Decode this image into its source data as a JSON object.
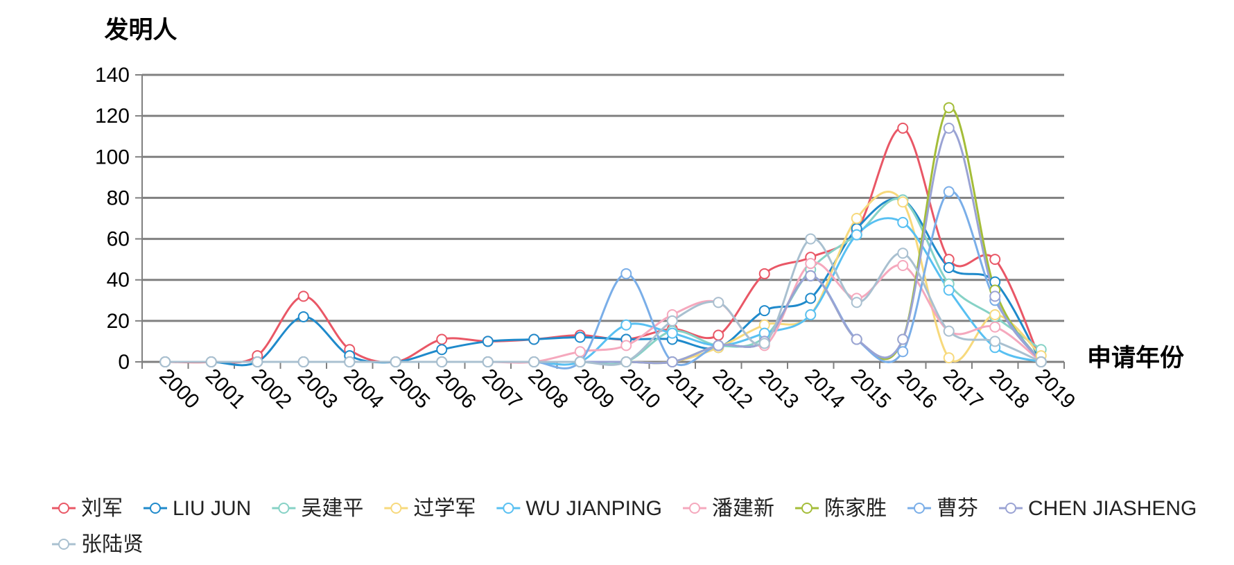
{
  "chart_data": {
    "type": "line",
    "ylabel": "发明人",
    "xlabel": "申请年份",
    "ylim": [
      0,
      140
    ],
    "yticks": [
      0,
      20,
      40,
      60,
      80,
      100,
      120,
      140
    ],
    "grid": true,
    "legend_position": "bottom",
    "categories": [
      "2000",
      "2001",
      "2002",
      "2003",
      "2004",
      "2005",
      "2006",
      "2007",
      "2008",
      "2009",
      "2010",
      "2011",
      "2012",
      "2013",
      "2014",
      "2015",
      "2016",
      "2017",
      "2018",
      "2019"
    ],
    "series": [
      {
        "name": "刘军",
        "color": "#e95766",
        "values": [
          0,
          0,
          3,
          32,
          6,
          0,
          11,
          10,
          11,
          13,
          11,
          16,
          13,
          43,
          51,
          64,
          114,
          50,
          50,
          0
        ]
      },
      {
        "name": "LIU JUN",
        "color": "#1f8acb",
        "values": [
          0,
          0,
          0,
          22,
          3,
          0,
          6,
          10,
          11,
          12,
          11,
          11,
          7,
          25,
          31,
          65,
          79,
          46,
          39,
          0
        ]
      },
      {
        "name": "吴建平",
        "color": "#86d2c6",
        "values": [
          0,
          0,
          0,
          0,
          0,
          0,
          0,
          0,
          0,
          0,
          0,
          15,
          8,
          12,
          45,
          62,
          79,
          38,
          22,
          6
        ]
      },
      {
        "name": "过学军",
        "color": "#f7d97c",
        "values": [
          0,
          0,
          0,
          0,
          0,
          0,
          0,
          0,
          0,
          0,
          0,
          0,
          7,
          18,
          23,
          70,
          78,
          2,
          23,
          3
        ]
      },
      {
        "name": "WU JIANPING",
        "color": "#58c0f2",
        "values": [
          0,
          0,
          0,
          0,
          0,
          0,
          0,
          0,
          0,
          0,
          18,
          14,
          8,
          14,
          23,
          62,
          68,
          35,
          7,
          0
        ]
      },
      {
        "name": "潘建新",
        "color": "#f5a8bd",
        "values": [
          0,
          0,
          0,
          0,
          0,
          0,
          0,
          0,
          0,
          5,
          8,
          23,
          29,
          8,
          48,
          31,
          47,
          15,
          17,
          0
        ]
      },
      {
        "name": "陈家胜",
        "color": "#a4bd39",
        "values": [
          0,
          0,
          0,
          0,
          0,
          0,
          0,
          0,
          0,
          0,
          0,
          0,
          8,
          10,
          42,
          11,
          11,
          124,
          35,
          0
        ]
      },
      {
        "name": "曹芬",
        "color": "#7aaee8",
        "values": [
          0,
          0,
          0,
          0,
          0,
          0,
          0,
          0,
          0,
          0,
          43,
          0,
          8,
          10,
          42,
          11,
          5,
          83,
          30,
          0
        ]
      },
      {
        "name": "CHEN JIASHENG",
        "color": "#9aa3d4",
        "values": [
          0,
          0,
          0,
          0,
          0,
          0,
          0,
          0,
          0,
          0,
          0,
          0,
          8,
          10,
          42,
          11,
          11,
          114,
          32,
          0
        ]
      },
      {
        "name": "张陆贤",
        "color": "#a9c0d0",
        "values": [
          0,
          0,
          0,
          0,
          0,
          0,
          0,
          0,
          0,
          0,
          0,
          20,
          29,
          9,
          60,
          29,
          53,
          15,
          10,
          0
        ]
      }
    ]
  }
}
